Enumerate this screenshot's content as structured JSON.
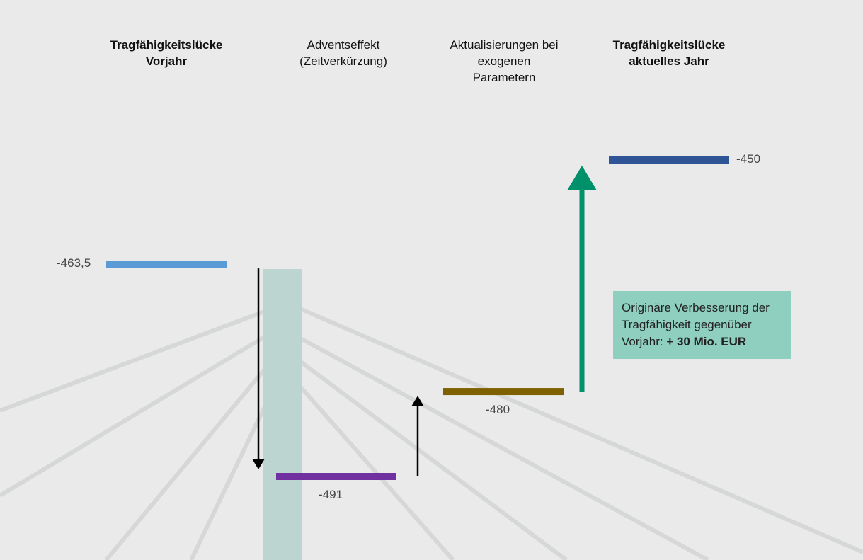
{
  "chart_data": {
    "type": "level",
    "categories": [
      "Tragfähigkeitslücke\nVorjahr",
      "Adventseffekt\n(Zeitverkürzung)",
      "Aktualisierungen bei\nexogenen\nParametern",
      "Tragfähigkeitslücke\naktuelles Jahr"
    ],
    "values": [
      -463.5,
      -491,
      -480,
      -450
    ],
    "value_labels": [
      "-463,5",
      "-491",
      "-480",
      "-450"
    ],
    "colors": [
      "#5b9bd5",
      "#7030a0",
      "#7f6000",
      "#2f5597"
    ],
    "annotation": {
      "text": "Originäre Verbesserung der Tragfähigkeit gegenüber Vorjahr: ",
      "emphasis": "+ 30 Mio. EUR",
      "color": "#8fcfbf",
      "arrow_color": "#00906a"
    }
  }
}
